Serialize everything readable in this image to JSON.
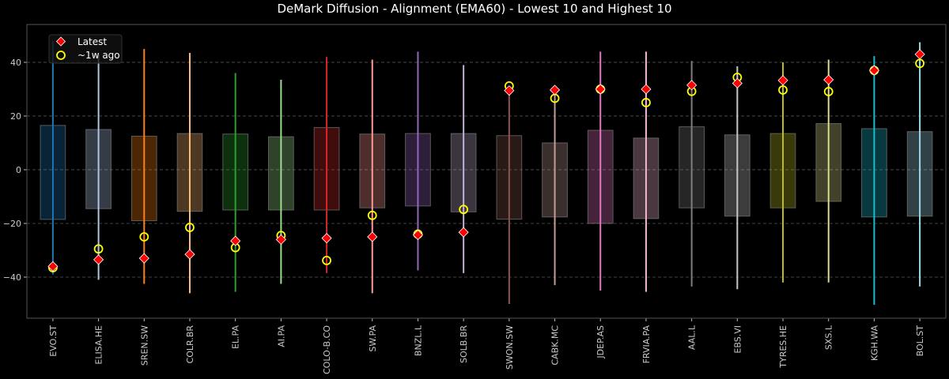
{
  "chart_data": {
    "type": "box-range",
    "title": "DeMark Diffusion - Alignment (EMA60) - Lowest 10 and Highest 10",
    "xlabel": "",
    "ylabel": "",
    "ylim": [
      -55.3,
      54.1
    ],
    "yticks": [
      -40,
      -20,
      0,
      20,
      40
    ],
    "grid": "horizontal dashed",
    "legend": {
      "placement": "top-left",
      "entries": [
        {
          "label": "Latest",
          "marker": "diamond",
          "color": "#ff0000"
        },
        {
          "label": "~1w ago",
          "marker": "circle",
          "color": "#ffff00"
        }
      ]
    },
    "categories": [
      "EVO.ST",
      "ELISA.HE",
      "SREN.SW",
      "COLR.BR",
      "EL.PA",
      "AI.PA",
      "COLO-B.CO",
      "SW.PA",
      "BNZL.L",
      "SOLB.BR",
      "SWON.SW",
      "CABK.MC",
      "JDEP.AS",
      "FRVIA.PA",
      "AAL.L",
      "EBS.VI",
      "TYRES.HE",
      "SXS.L",
      "KGH.WA",
      "BOL.ST"
    ],
    "colors": [
      "#1f77b4",
      "#aec7e8",
      "#ff7f0e",
      "#ffbb78",
      "#2ca02c",
      "#98df8a",
      "#d62728",
      "#ff9896",
      "#9467bd",
      "#c5b0d5",
      "#8c564b",
      "#c49c94",
      "#e377c2",
      "#f7b6d2",
      "#7f7f7f",
      "#c7c7c7",
      "#bcbd22",
      "#dbdb8d",
      "#17becf",
      "#9edae5"
    ],
    "whisker_high": [
      48,
      43,
      45,
      43.5,
      36,
      33.5,
      42,
      41,
      44,
      39,
      30.5,
      29.5,
      44,
      44,
      40.5,
      38.5,
      40,
      41,
      42.3,
      47.5
    ],
    "whisker_low": [
      -39,
      -41,
      -42.5,
      -46,
      -45.5,
      -42.5,
      -38.5,
      -46,
      -37.5,
      -38.5,
      -50,
      -43,
      -45,
      -45.5,
      -43.5,
      -44.5,
      -42,
      -42,
      -50.3,
      -43.5
    ],
    "box_high": [
      16.5,
      15,
      12.5,
      13.5,
      13.3,
      12.3,
      15.7,
      13.3,
      13.5,
      13.5,
      12.7,
      10,
      14.7,
      11.8,
      16,
      13,
      13.5,
      17.2,
      15.3,
      14.2
    ],
    "box_low": [
      -18.5,
      -14.5,
      -19,
      -15.5,
      -15,
      -15,
      -15,
      -14.2,
      -13.5,
      -15.7,
      -18.4,
      -17.6,
      -20,
      -18.2,
      -14.2,
      -17.3,
      -14.2,
      -11.8,
      -17.6,
      -17.3
    ],
    "latest": [
      -36,
      -33.5,
      -33,
      -31.5,
      -26.5,
      -26,
      -25.5,
      -25,
      -24.3,
      -23.3,
      29.5,
      29.7,
      30,
      30,
      31.5,
      32.2,
      33.3,
      33.5,
      37,
      43
    ],
    "week_ago": [
      -36.5,
      -29.5,
      -25,
      -21.5,
      -29,
      -24.5,
      -33.8,
      -17,
      -24,
      -14.8,
      31.2,
      26.6,
      30,
      25,
      29.2,
      34.4,
      29.7,
      29.1,
      37,
      39.6
    ]
  }
}
